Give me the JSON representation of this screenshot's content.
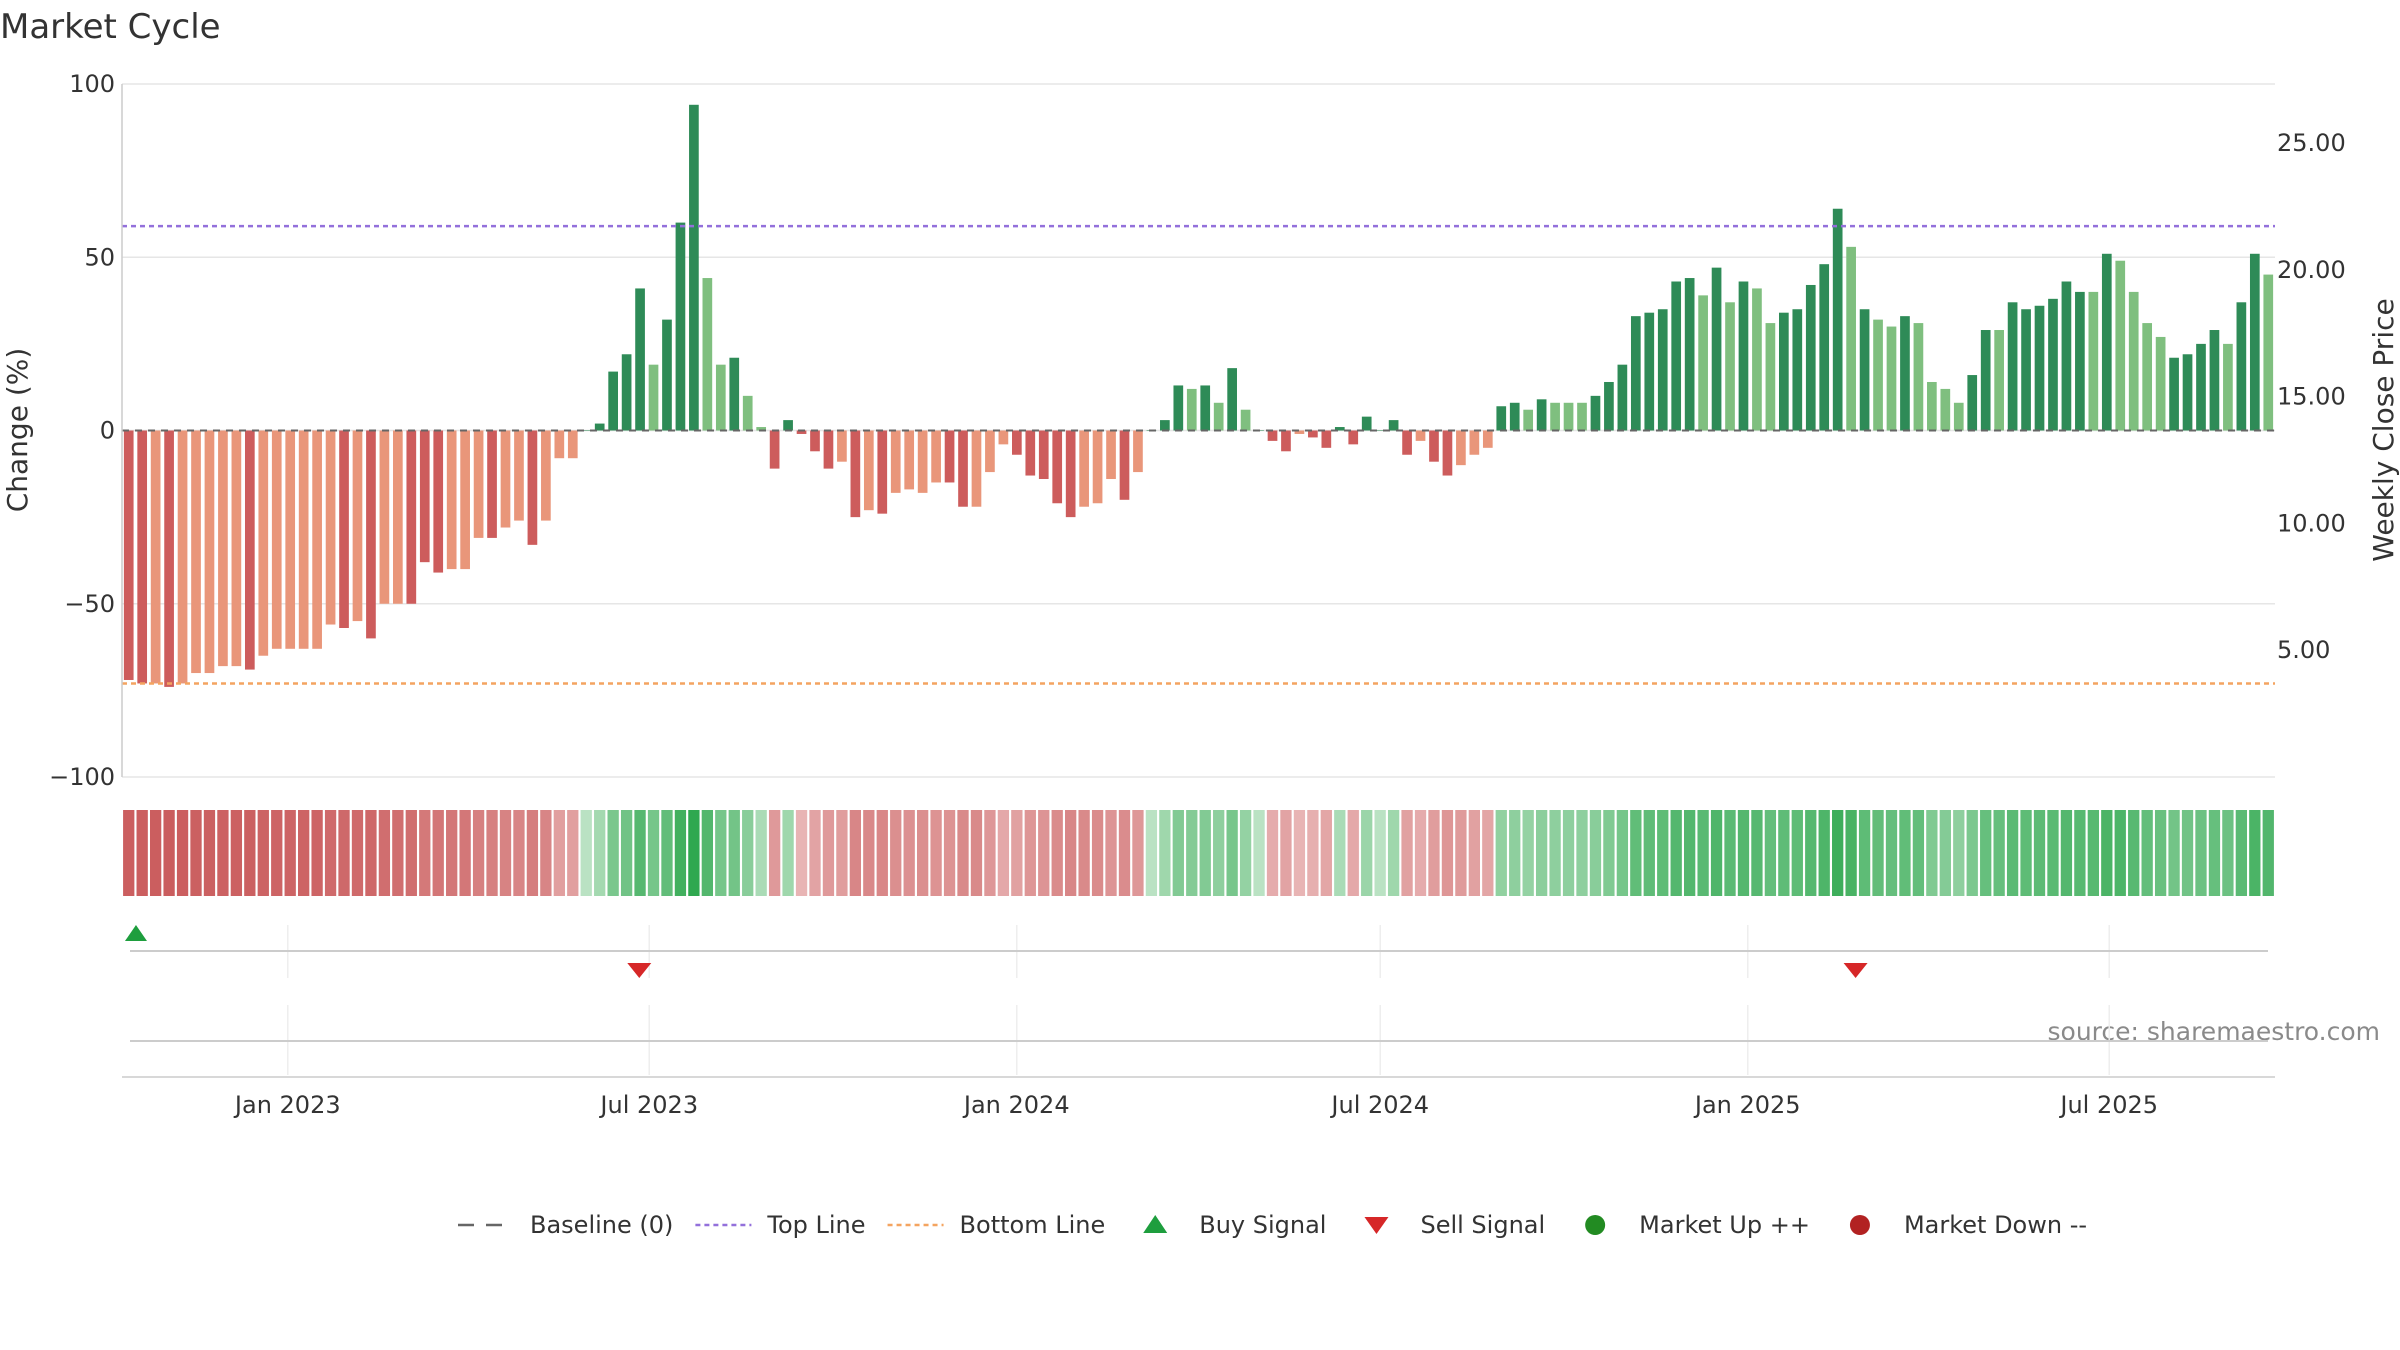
{
  "chart_data": {
    "type": "bar",
    "title": "Market Cycle",
    "ylabel_left": "Change (%)",
    "ylabel_right": "Weekly Close Price",
    "ylim_left": [
      -100,
      100
    ],
    "yticks_left": [
      100,
      50,
      0,
      -50,
      -100
    ],
    "yticks_left_labels": [
      "100",
      "50",
      "0",
      "−50",
      "−100"
    ],
    "ylim_right": [
      0,
      27.33
    ],
    "yticks_right": [
      25,
      20,
      15,
      10,
      5
    ],
    "yticks_right_labels": [
      "25.00",
      "20.00",
      "15.00",
      "10.00",
      "5.00"
    ],
    "x_start": "2022-10-10",
    "x_end": "2025-09-22",
    "xticks": [
      "2023-01-01",
      "2023-07-01",
      "2024-01-01",
      "2024-07-01",
      "2025-01-01",
      "2025-07-01"
    ],
    "xtick_labels": [
      "Jan 2023",
      "Jul 2023",
      "Jan 2024",
      "Jul 2024",
      "Jan 2025",
      "Jul 2025"
    ],
    "top_line": 59,
    "bottom_line": -73,
    "baseline": 0,
    "grid": true,
    "legend_position": "bottom-center",
    "colors": {
      "strong_up": "#2e8b57",
      "weak_up": "#7fbf7f",
      "strong_down": "#cd5c5c",
      "weak_down": "#e9967a",
      "top_line": "#9370db",
      "bottom_line": "#f4a460",
      "buy": "#1e9e3e",
      "sell": "#d62728",
      "market_up": "#228b22",
      "market_down": "#b22222",
      "baseline": "#666666"
    },
    "values": [
      -72,
      -73,
      -73,
      -74,
      -73,
      -70,
      -70,
      -68,
      -68,
      -69,
      -65,
      -63,
      -63,
      -63,
      -63,
      -56,
      -57,
      -55,
      -60,
      -50,
      -50,
      -50,
      -38,
      -41,
      -40,
      -40,
      -31,
      -31,
      -28,
      -26,
      -33,
      -26,
      -8,
      -8,
      0,
      2,
      17,
      22,
      41,
      19,
      32,
      60,
      94,
      44,
      19,
      21,
      10,
      1,
      -11,
      3,
      -1,
      -6,
      -11,
      -9,
      -25,
      -23,
      -24,
      -18,
      -17,
      -18,
      -15,
      -15,
      -22,
      -22,
      -12,
      -4,
      -7,
      -13,
      -14,
      -21,
      -25,
      -22,
      -21,
      -14,
      -20,
      -12,
      0,
      3,
      13,
      12,
      13,
      8,
      18,
      6,
      0,
      -3,
      -6,
      -1,
      -2,
      -5,
      1,
      -4,
      4,
      0,
      3,
      -7,
      -3,
      -9,
      -13,
      -10,
      -7,
      -5,
      7,
      8,
      6,
      9,
      8,
      8,
      8,
      10,
      14,
      19,
      33,
      34,
      35,
      43,
      44,
      39,
      47,
      37,
      43,
      41,
      31,
      34,
      35,
      42,
      48,
      64,
      53,
      35,
      32,
      30,
      33,
      31,
      14,
      12,
      8,
      16,
      29,
      29,
      37,
      35,
      36,
      38,
      43,
      40,
      40,
      51,
      49,
      40,
      31,
      27,
      21,
      22,
      25,
      29,
      25,
      37,
      51,
      45
    ],
    "strength": [
      1,
      1,
      0,
      1,
      0,
      0,
      0,
      0,
      0,
      1,
      0,
      0,
      0,
      0,
      0,
      0,
      1,
      0,
      1,
      0,
      0,
      1,
      1,
      1,
      0,
      0,
      0,
      1,
      0,
      0,
      1,
      0,
      0,
      0,
      1,
      1,
      1,
      1,
      1,
      0,
      1,
      1,
      1,
      0,
      0,
      1,
      0,
      0,
      1,
      1,
      1,
      1,
      1,
      0,
      1,
      0,
      1,
      0,
      0,
      0,
      0,
      1,
      1,
      0,
      0,
      0,
      1,
      1,
      1,
      1,
      1,
      0,
      0,
      0,
      1,
      0,
      1,
      1,
      1,
      0,
      1,
      0,
      1,
      0,
      1,
      1,
      1,
      0,
      1,
      1,
      1,
      1,
      1,
      1,
      1,
      1,
      0,
      1,
      1,
      0,
      0,
      0,
      1,
      1,
      0,
      1,
      0,
      0,
      0,
      1,
      1,
      1,
      1,
      1,
      1,
      1,
      1,
      0,
      1,
      0,
      1,
      0,
      0,
      1,
      1,
      1,
      1,
      1,
      0,
      1,
      0,
      0,
      1,
      0,
      0,
      0,
      0,
      1,
      1,
      0,
      1,
      1,
      1,
      1,
      1,
      1,
      0,
      1,
      0,
      0,
      0,
      0,
      1,
      1,
      1,
      1,
      0,
      1,
      1,
      0
    ],
    "weekly_close_price": [],
    "buy_signals": [
      "2022-10-17"
    ],
    "sell_signals": [
      "2023-06-26",
      "2025-02-24"
    ],
    "source": "source: sharemaestro.com",
    "legend": [
      {
        "name": "Baseline (0)",
        "kind": "dash-line",
        "color": "#666666"
      },
      {
        "name": "Top Line",
        "kind": "dot-line",
        "color": "#9370db"
      },
      {
        "name": "Bottom Line",
        "kind": "dot-line",
        "color": "#f4a460"
      },
      {
        "name": "Buy Signal",
        "kind": "triangle-up",
        "color": "#1e9e3e"
      },
      {
        "name": "Sell Signal",
        "kind": "triangle-down",
        "color": "#d62728"
      },
      {
        "name": "Market Up ++",
        "kind": "circle",
        "color": "#228b22"
      },
      {
        "name": "Market Down --",
        "kind": "circle",
        "color": "#b22222"
      }
    ]
  }
}
